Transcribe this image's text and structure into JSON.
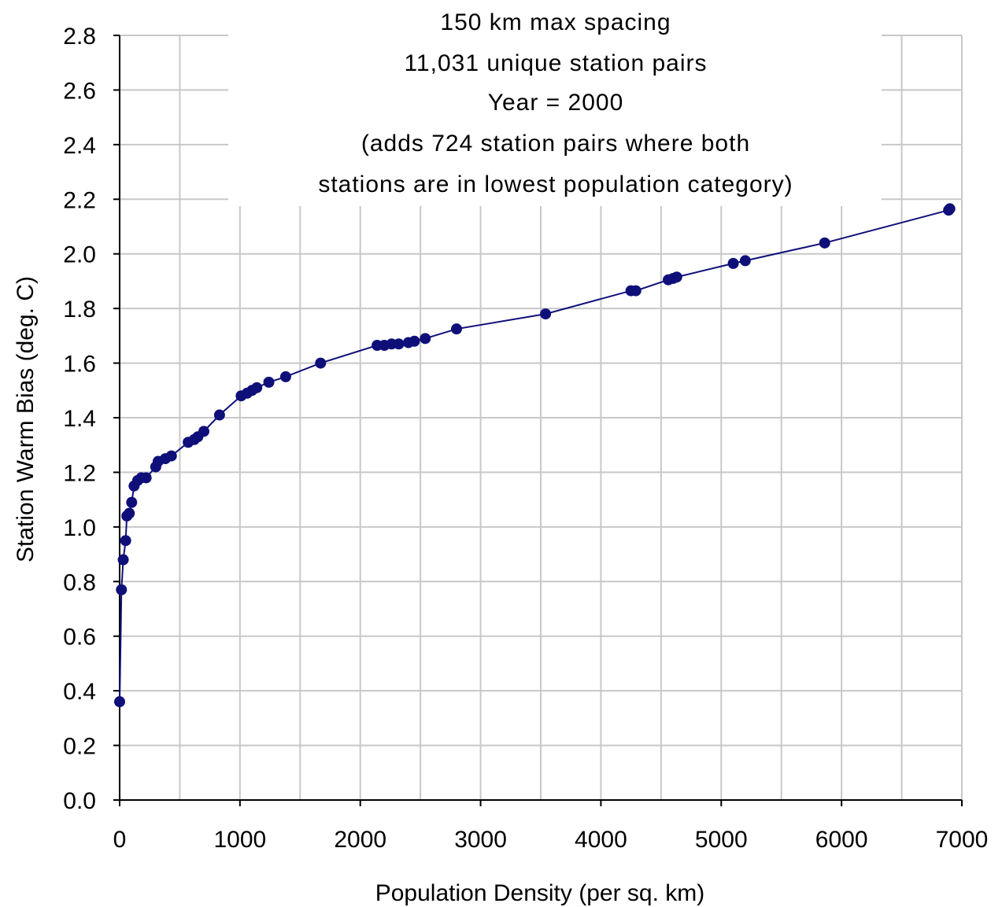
{
  "chart_data": {
    "type": "line",
    "title_lines": [
      "150 km max spacing",
      "11,031 unique station pairs",
      "Year = 2000",
      "(adds 724 station pairs where both",
      "stations are in lowest population category)"
    ],
    "xlabel": "Population Density (per sq. km)",
    "ylabel": "Station Warm Bias (deg. C)",
    "xlim": [
      0,
      7000
    ],
    "ylim": [
      0,
      2.8
    ],
    "xticks": [
      0,
      1000,
      2000,
      3000,
      4000,
      5000,
      6000,
      7000
    ],
    "yticks": [
      "0.0",
      "0.2",
      "0.4",
      "0.6",
      "0.8",
      "1.0",
      "1.2",
      "1.4",
      "1.6",
      "1.8",
      "2.0",
      "2.2",
      "2.4",
      "2.6",
      "2.8"
    ],
    "grid": true,
    "legend": "none",
    "color": "#0f0f7a",
    "series": [
      {
        "x": [
          0,
          15,
          30,
          50,
          60,
          80,
          100,
          120,
          150,
          180,
          220,
          300,
          320,
          380,
          430,
          570,
          620,
          650,
          700,
          830,
          1010,
          1060,
          1100,
          1140,
          1240,
          1380,
          1670,
          2140,
          2200,
          2260,
          2320,
          2400,
          2450,
          2540,
          2800,
          3540,
          4250,
          4290,
          4560,
          4600,
          4630,
          5100,
          5200,
          5860,
          6890,
          6900
        ],
        "y": [
          0.36,
          0.77,
          0.88,
          0.95,
          1.04,
          1.05,
          1.09,
          1.15,
          1.17,
          1.18,
          1.18,
          1.22,
          1.24,
          1.25,
          1.26,
          1.31,
          1.32,
          1.33,
          1.35,
          1.41,
          1.48,
          1.49,
          1.5,
          1.51,
          1.53,
          1.55,
          1.6,
          1.665,
          1.665,
          1.67,
          1.67,
          1.675,
          1.68,
          1.69,
          1.725,
          1.78,
          1.865,
          1.865,
          1.905,
          1.91,
          1.915,
          1.965,
          1.975,
          2.04,
          2.16,
          2.165
        ]
      }
    ]
  }
}
